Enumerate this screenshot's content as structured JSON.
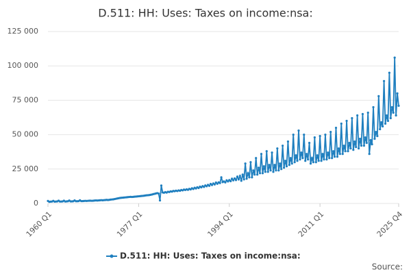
{
  "chart_data": {
    "type": "line",
    "title": "D.511: HH: Uses: Taxes on income:nsa:",
    "source": "Source:",
    "categories": [
      "1960 Q1",
      null,
      null,
      null,
      null,
      null,
      null,
      null,
      null,
      null,
      null,
      null,
      null,
      null,
      null,
      null,
      null,
      null,
      null,
      null,
      null,
      null,
      null,
      null,
      null,
      null,
      null,
      null,
      null,
      null,
      null,
      null,
      null,
      null,
      null,
      null,
      null,
      null,
      null,
      null,
      null,
      null,
      null,
      null,
      null,
      null,
      null,
      null,
      null,
      null,
      null,
      null,
      null,
      null,
      null,
      null,
      null,
      null,
      null,
      null,
      null,
      null,
      null,
      null,
      null,
      null,
      null,
      null,
      "1977 Q1",
      null,
      null,
      null,
      null,
      null,
      null,
      null,
      null,
      null,
      null,
      null,
      null,
      null,
      null,
      null,
      null,
      null,
      null,
      null,
      null,
      null,
      null,
      null,
      null,
      null,
      null,
      null,
      null,
      null,
      null,
      null,
      null,
      null,
      null,
      null,
      null,
      null,
      null,
      null,
      null,
      null,
      null,
      null,
      null,
      null,
      null,
      null,
      null,
      null,
      null,
      null,
      null,
      null,
      null,
      null,
      null,
      null,
      null,
      null,
      null,
      null,
      null,
      null,
      null,
      null,
      null,
      null,
      "1994 Q1",
      null,
      null,
      null,
      null,
      null,
      null,
      null,
      null,
      null,
      null,
      null,
      null,
      null,
      null,
      null,
      null,
      null,
      null,
      null,
      null,
      null,
      null,
      null,
      null,
      null,
      null,
      null,
      null,
      null,
      null,
      null,
      null,
      null,
      null,
      null,
      null,
      null,
      null,
      null,
      null,
      null,
      null,
      null,
      null,
      null,
      null,
      null,
      null,
      null,
      null,
      null,
      null,
      null,
      null,
      null,
      null,
      null,
      null,
      null,
      null,
      null,
      null,
      null,
      null,
      null,
      null,
      null,
      "2011 Q1",
      null,
      null,
      null,
      null,
      null,
      null,
      null,
      null,
      null,
      null,
      null,
      null,
      null,
      null,
      null,
      null,
      null,
      null,
      null,
      null,
      null,
      null,
      null,
      null,
      null,
      null,
      null,
      null,
      null,
      null,
      null,
      null,
      null,
      null,
      null,
      null,
      null,
      null,
      null,
      null,
      null,
      null,
      null,
      null,
      null,
      null,
      null,
      null,
      null,
      null,
      null,
      null,
      null,
      null,
      null,
      null,
      null,
      null,
      "2025 Q4"
    ],
    "series": [
      {
        "name": "D.511: HH: Uses: Taxes on income:nsa:",
        "color": "#1f7fbf",
        "values": [
          1800,
          1200,
          1300,
          1400,
          1900,
          1300,
          1400,
          1500,
          2000,
          1400,
          1400,
          1500,
          2000,
          1400,
          1500,
          1600,
          2100,
          1500,
          1500,
          1600,
          2200,
          1600,
          1600,
          1700,
          2300,
          1700,
          1700,
          1800,
          1900,
          1800,
          1900,
          2000,
          2000,
          1900,
          2000,
          2100,
          2200,
          2100,
          2200,
          2300,
          2400,
          2300,
          2400,
          2500,
          2600,
          2500,
          2600,
          2800,
          2900,
          3000,
          3200,
          3400,
          3600,
          3800,
          4000,
          4100,
          4200,
          4300,
          4400,
          4500,
          4600,
          4700,
          4800,
          4700,
          4800,
          4900,
          5000,
          5100,
          5200,
          5300,
          5400,
          5500,
          5600,
          5800,
          5900,
          6000,
          6100,
          6300,
          6500,
          6800,
          7000,
          7300,
          7500,
          7200,
          2200,
          13000,
          8000,
          7800,
          8200,
          7900,
          8500,
          8300,
          8800,
          8600,
          9100,
          8900,
          9300,
          9000,
          9500,
          9200,
          9800,
          9500,
          10100,
          9800,
          10300,
          9900,
          10600,
          10200,
          11000,
          10500,
          11400,
          10900,
          11800,
          11200,
          12200,
          11700,
          12600,
          12000,
          13100,
          12500,
          13500,
          12800,
          14200,
          13400,
          14500,
          13800,
          15200,
          14300,
          15300,
          14800,
          19000,
          15500,
          16000,
          15300,
          16800,
          16000,
          17000,
          16200,
          18000,
          16800,
          18200,
          17000,
          19500,
          17500,
          20000,
          16500,
          21000,
          17500,
          29000,
          18000,
          22000,
          19000,
          30000,
          19000,
          24000,
          21000,
          33000,
          21000,
          26000,
          22000,
          36000,
          22000,
          27000,
          23000,
          38000,
          23000,
          28000,
          24000,
          37000,
          23000,
          28000,
          24000,
          40000,
          24000,
          29000,
          25000,
          42000,
          26000,
          31000,
          27000,
          45000,
          28000,
          33000,
          29000,
          50000,
          30000,
          35000,
          31000,
          53000,
          32000,
          37000,
          33000,
          50000,
          31000,
          36000,
          32000,
          44000,
          29000,
          33000,
          30000,
          48000,
          30000,
          35000,
          31000,
          49000,
          31000,
          36000,
          32000,
          50000,
          32000,
          37000,
          33000,
          52000,
          33000,
          38000,
          34000,
          55000,
          34000,
          40000,
          36000,
          58000,
          36000,
          42000,
          38000,
          60000,
          38000,
          44000,
          40000,
          62000,
          39000,
          45000,
          41000,
          64000,
          40000,
          47000,
          42000,
          65000,
          42000,
          48000,
          44000,
          66000,
          36000,
          46000,
          43000,
          70000,
          47000,
          52000,
          49000,
          78000,
          54000,
          59000,
          56000,
          89000,
          58000,
          64000,
          60000,
          95000,
          62000,
          70000,
          66000,
          106000,
          64000,
          80000,
          71000
        ]
      }
    ],
    "ylim": [
      0,
      125000
    ],
    "yticks": [
      0,
      {
        "value": 25000,
        "label": "25 000"
      },
      {
        "value": 50000,
        "label": "50 000"
      },
      {
        "value": 75000,
        "label": "75 000"
      },
      {
        "value": 100000,
        "label": "100 000"
      },
      {
        "value": 125000,
        "label": "125 000"
      }
    ],
    "grid": true,
    "legend": "bottom"
  }
}
